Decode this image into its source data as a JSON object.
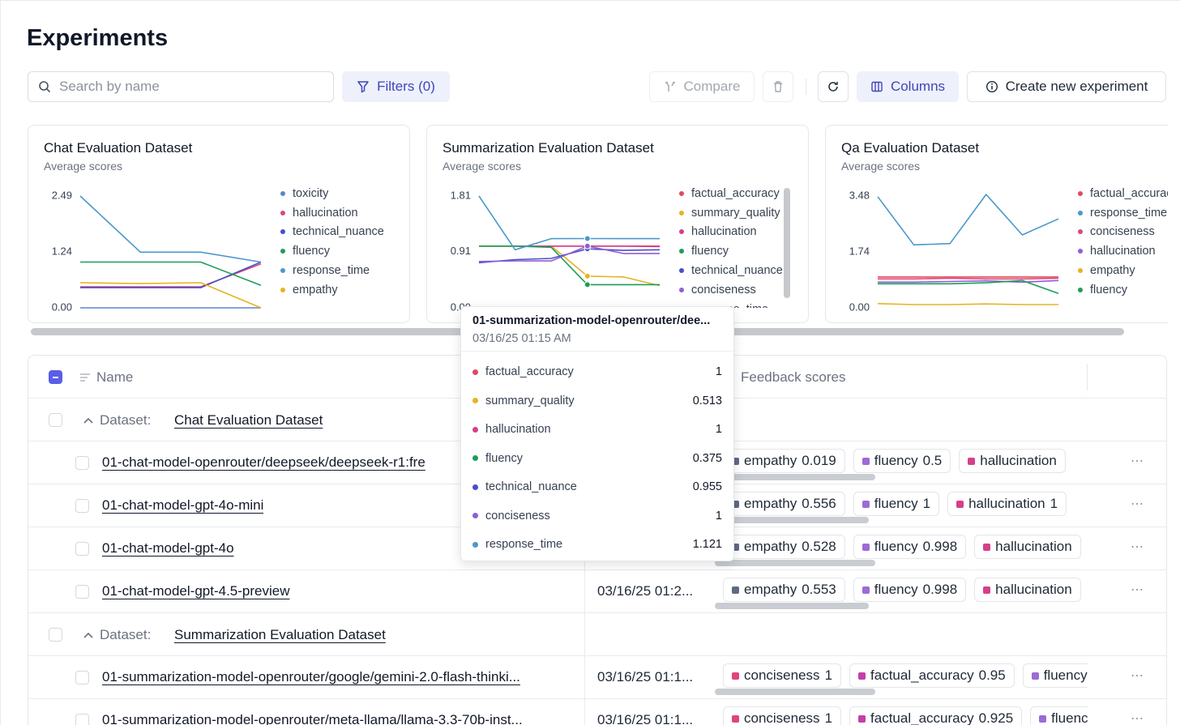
{
  "header": {
    "title": "Experiments"
  },
  "toolbar": {
    "search_placeholder": "Search by name",
    "filters": "Filters (0)",
    "compare": "Compare",
    "columns": "Columns",
    "create": "Create new experiment"
  },
  "chart_data": [
    {
      "type": "line",
      "title": "Chat Evaluation Dataset",
      "subtitle": "Average scores",
      "categories": [
        null,
        null,
        null,
        null
      ],
      "ylim": [
        0,
        2.49
      ],
      "yticks": [
        {
          "value": 0,
          "label": "0.00"
        },
        1.24,
        2.49
      ],
      "series": [
        {
          "name": "toxicity",
          "color": "#5b86c9",
          "values": [
            0,
            0,
            0,
            0
          ]
        },
        {
          "name": "hallucination",
          "color": "#df4677",
          "values": [
            0.47,
            0.47,
            0.47,
            0.98
          ]
        },
        {
          "name": "technical_nuance",
          "color": "#4650c8",
          "values": [
            0.45,
            0.45,
            0.45,
            1.02
          ]
        },
        {
          "name": "fluency",
          "color": "#1f9d57",
          "values": [
            1.02,
            1.02,
            1.02,
            0.5
          ]
        },
        {
          "name": "response_time",
          "color": "#4a98c9",
          "values": [
            2.49,
            1.24,
            1.24,
            1.02
          ]
        },
        {
          "name": "empathy",
          "color": "#e6b324",
          "values": [
            0.56,
            0.54,
            0.56,
            0
          ]
        }
      ]
    },
    {
      "type": "line",
      "title": "Summarization Evaluation Dataset",
      "subtitle": "Average scores",
      "categories": [
        null,
        null,
        null,
        null,
        null,
        null
      ],
      "ylim": [
        0,
        1.81
      ],
      "yticks": [
        {
          "value": 0,
          "label": "0.00"
        },
        0.91,
        1.81
      ],
      "series": [
        {
          "name": "factual_accuracy",
          "color": "#e04a5f",
          "values": [
            1,
            1,
            1,
            1,
            1,
            1
          ]
        },
        {
          "name": "summary_quality",
          "color": "#e6b324",
          "values": [
            1,
            1,
            1,
            0.513,
            0.5,
            0.36
          ]
        },
        {
          "name": "hallucination",
          "color": "#d63f8c",
          "values": [
            1,
            1,
            1,
            1,
            1,
            0.99
          ]
        },
        {
          "name": "fluency",
          "color": "#1f9d57",
          "values": [
            1,
            1,
            0.98,
            0.375,
            0.375,
            0.375
          ]
        },
        {
          "name": "technical_nuance",
          "color": "#4650c8",
          "values": [
            0.73,
            0.78,
            0.8,
            0.955,
            0.93,
            0.94
          ]
        },
        {
          "name": "conciseness",
          "color": "#8e5fd6",
          "values": [
            0.75,
            0.76,
            0.76,
            1,
            0.88,
            0.88
          ]
        },
        {
          "name": "response_time",
          "color": "#4a98c9",
          "values": [
            1.81,
            0.94,
            1.12,
            1.121,
            1.12,
            1.12
          ]
        }
      ]
    },
    {
      "type": "line",
      "title": "Qa Evaluation Dataset",
      "subtitle": "Average scores",
      "categories": [
        null,
        null,
        null,
        null,
        null,
        null
      ],
      "ylim": [
        0,
        3.48
      ],
      "yticks": [
        {
          "value": 0,
          "label": "0.00"
        },
        1.74,
        3.48
      ],
      "series": [
        {
          "name": "factual_accuracy",
          "color": "#e04a5f",
          "values": [
            0.96,
            0.96,
            0.96,
            0.96,
            0.96,
            0.96
          ]
        },
        {
          "name": "response_time",
          "color": "#4a98c9",
          "values": [
            3.46,
            1.96,
            2.0,
            3.53,
            2.27,
            2.77
          ]
        },
        {
          "name": "conciseness",
          "color": "#df4677",
          "values": [
            0.9,
            0.9,
            0.92,
            0.9,
            0.9,
            0.92
          ]
        },
        {
          "name": "hallucination",
          "color": "#8e5fd6",
          "values": [
            0.8,
            0.8,
            0.82,
            0.84,
            0.8,
            0.85
          ]
        },
        {
          "name": "empathy",
          "color": "#e6b324",
          "values": [
            0.13,
            0.1,
            0.1,
            0.12,
            0.1,
            0.1
          ]
        },
        {
          "name": "fluency",
          "color": "#1f9d57",
          "values": [
            0.75,
            0.75,
            0.75,
            0.78,
            0.85,
            0.45
          ]
        }
      ]
    }
  ],
  "tooltip": {
    "title": "01-summarization-model-openrouter/dee...",
    "time": "03/16/25 01:15 AM"
  },
  "feedback_colors": {
    "empathy": "#5d6b82",
    "fluency": "#9b6bd6",
    "hallucination": "#d63f8c",
    "conciseness": "#e0457b",
    "factual_accuracy": "#c43fa8"
  },
  "table": {
    "columns": {
      "name": "Name",
      "feedback": "Feedback scores"
    },
    "group_label": "Dataset:",
    "groups": [
      {
        "dataset": "Chat Evaluation Dataset",
        "rows": [
          {
            "name": "01-chat-model-openrouter/deepseek/deepseek-r1:fre",
            "scores": [
              {
                "name": "empathy",
                "value": 0.019
              },
              {
                "name": "fluency",
                "value": 0.5
              },
              {
                "name": "hallucination"
              }
            ]
          },
          {
            "name": "01-chat-model-gpt-4o-mini",
            "scores": [
              {
                "name": "empathy",
                "value": 0.556
              },
              {
                "name": "fluency",
                "value": 1
              },
              {
                "name": "hallucination",
                "value": 1
              }
            ]
          },
          {
            "name": "01-chat-model-gpt-4o",
            "scores": [
              {
                "name": "empathy",
                "value": 0.528
              },
              {
                "name": "fluency",
                "value": 0.998
              },
              {
                "name": "hallucination"
              }
            ]
          },
          {
            "name": "01-chat-model-gpt-4.5-preview",
            "created": "03/16/25 01:2...",
            "scores": [
              {
                "name": "empathy",
                "value": 0.553
              },
              {
                "name": "fluency",
                "value": 0.998
              },
              {
                "name": "hallucination"
              }
            ]
          }
        ]
      },
      {
        "dataset": "Summarization Evaluation Dataset",
        "rows": [
          {
            "name": "01-summarization-model-openrouter/google/gemini-2.0-flash-thinki...",
            "created": "03/16/25 01:1...",
            "scores": [
              {
                "name": "conciseness",
                "value": 1
              },
              {
                "name": "factual_accuracy",
                "value": 0.95
              },
              {
                "name": "fluency"
              }
            ]
          },
          {
            "name": "01-summarization-model-openrouter/meta-llama/llama-3.3-70b-inst...",
            "created": "03/16/25 01:1...",
            "scores": [
              {
                "name": "conciseness",
                "value": 1
              },
              {
                "name": "factual_accuracy",
                "value": 0.925
              },
              {
                "name": "fluency"
              }
            ]
          }
        ]
      }
    ]
  }
}
